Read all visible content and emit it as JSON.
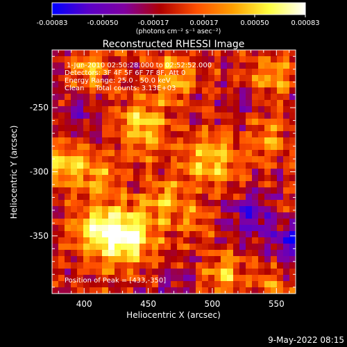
{
  "footer": {
    "date_stamp": "9-May-2022 08:15"
  },
  "colorbar": {
    "tick_labels": [
      "-0.00083",
      "-0.00050",
      "-0.00017",
      "0.00017",
      "0.00050",
      "0.00083"
    ],
    "unit_label": "(photons cm⁻² s⁻¹ asec⁻²)"
  },
  "colors": {
    "background": "#000000",
    "text": "#ffffff",
    "colormap_stops": [
      "#0000ff",
      "#5a00c8",
      "#8000a0",
      "#b00000",
      "#ff5000",
      "#ffa000",
      "#ffff40",
      "#ffffff"
    ]
  },
  "chart_data": {
    "type": "heatmap",
    "title": "Reconstructed RHESSI Image",
    "xlabel": "Heliocentric X (arcsec)",
    "ylabel": "Heliocentric Y (arcsec)",
    "xlim": [
      375,
      565
    ],
    "ylim": [
      -395,
      -205
    ],
    "xticks": [
      400,
      450,
      500,
      550
    ],
    "yticks": [
      -250,
      -300,
      -350
    ],
    "value_range": [
      -0.00083,
      0.00083
    ],
    "annotations": [
      "1-Jun-2010 02:50:28.000 to 02:52:52.000",
      "Detectors: 3F 4F 5F 6F 7F 8F, Att 0",
      "Energy Range: 25.0 - 50.0 keV",
      "Clean     Total counts: 3.13E+03"
    ],
    "peak_label": "Position of Peak = [433,-350]",
    "blobs": [
      {
        "x": 433,
        "y": -350,
        "amp": 1.0,
        "sigma": 16
      },
      {
        "x": 410,
        "y": -345,
        "amp": 0.7,
        "sigma": 13
      },
      {
        "x": 445,
        "y": -265,
        "amp": 0.7,
        "sigma": 14
      },
      {
        "x": 500,
        "y": -290,
        "amp": 0.7,
        "sigma": 14
      },
      {
        "x": 385,
        "y": -295,
        "amp": 0.65,
        "sigma": 11
      },
      {
        "x": 405,
        "y": -220,
        "amp": 0.55,
        "sigma": 11
      },
      {
        "x": 470,
        "y": -225,
        "amp": 0.55,
        "sigma": 12
      },
      {
        "x": 545,
        "y": -225,
        "amp": 0.5,
        "sigma": 12
      },
      {
        "x": 545,
        "y": -275,
        "amp": 0.45,
        "sigma": 11
      },
      {
        "x": 410,
        "y": -305,
        "amp": 0.5,
        "sigma": 12
      },
      {
        "x": 465,
        "y": -320,
        "amp": 0.5,
        "sigma": 12
      },
      {
        "x": 510,
        "y": -380,
        "amp": 0.65,
        "sigma": 10
      },
      {
        "x": 545,
        "y": -390,
        "amp": 0.45,
        "sigma": 9
      },
      {
        "x": 485,
        "y": -340,
        "amp": 0.35,
        "sigma": 9
      },
      {
        "x": 530,
        "y": -335,
        "amp": -0.55,
        "sigma": 12
      },
      {
        "x": 560,
        "y": -355,
        "amp": -0.6,
        "sigma": 10
      },
      {
        "x": 395,
        "y": -255,
        "amp": -0.35,
        "sigma": 9
      },
      {
        "x": 470,
        "y": -385,
        "amp": -0.3,
        "sigma": 10
      },
      {
        "x": 525,
        "y": -245,
        "amp": -0.25,
        "sigma": 9
      }
    ]
  }
}
